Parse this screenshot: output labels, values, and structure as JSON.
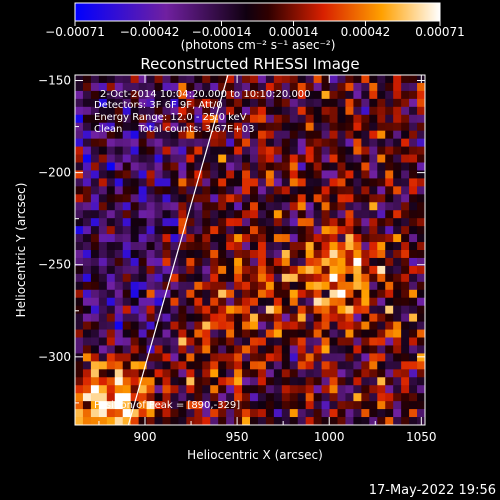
{
  "chart_data": {
    "type": "heatmap",
    "title": "Reconstructed RHESSI Image",
    "xlabel": "Heliocentric X (arcsec)",
    "ylabel": "Heliocentric Y (arcsec)",
    "xlim": [
      862,
      1052
    ],
    "ylim": [
      -337,
      -147
    ],
    "x_ticks": [
      900,
      950,
      1000,
      1050
    ],
    "x_tick_labels": [
      "900",
      "950",
      "1000",
      "1050"
    ],
    "y_ticks": [
      -150,
      -200,
      -250,
      -300
    ],
    "y_tick_labels": [
      "-150",
      "-200",
      "-250",
      "-300"
    ],
    "colorbar": {
      "min": -0.00071,
      "max": 0.00071,
      "ticks": [
        -0.00071,
        -0.00042,
        -0.00014,
        0.00014,
        0.00042,
        0.00071
      ],
      "tick_labels": [
        "-0.00071",
        "-0.00042",
        "-0.00014",
        "0.00014",
        "0.00042",
        "0.00071"
      ],
      "unit_label": "(photons cm⁻² s⁻¹ asec⁻²)",
      "colormap": "blue-purple-black-red-yellow-white"
    },
    "info_lines": [
      "2-Oct-2014 10:04:20.000 to 10:10:20.000",
      "Detectors: 3F 6F 9F, Att/0",
      "Energy Range: 12.0 - 25.0 keV",
      "Clean     Total counts: 3.67E+03"
    ],
    "peak": {
      "label": "Position of Peak = [890,-329]",
      "x": 890,
      "y": -329
    },
    "limb_line": [
      [
        891,
        -337
      ],
      [
        945,
        -147
      ]
    ],
    "bright_regions": [
      {
        "x": 1005,
        "y": -255,
        "level": 0.85
      },
      {
        "x": 960,
        "y": -265,
        "level": 0.55
      },
      {
        "x": 945,
        "y": -290,
        "level": 0.6
      },
      {
        "x": 880,
        "y": -325,
        "level": 0.95
      },
      {
        "x": 1040,
        "y": -300,
        "level": 0.5
      }
    ]
  },
  "footer": {
    "timestamp": "17-May-2022 19:56"
  }
}
